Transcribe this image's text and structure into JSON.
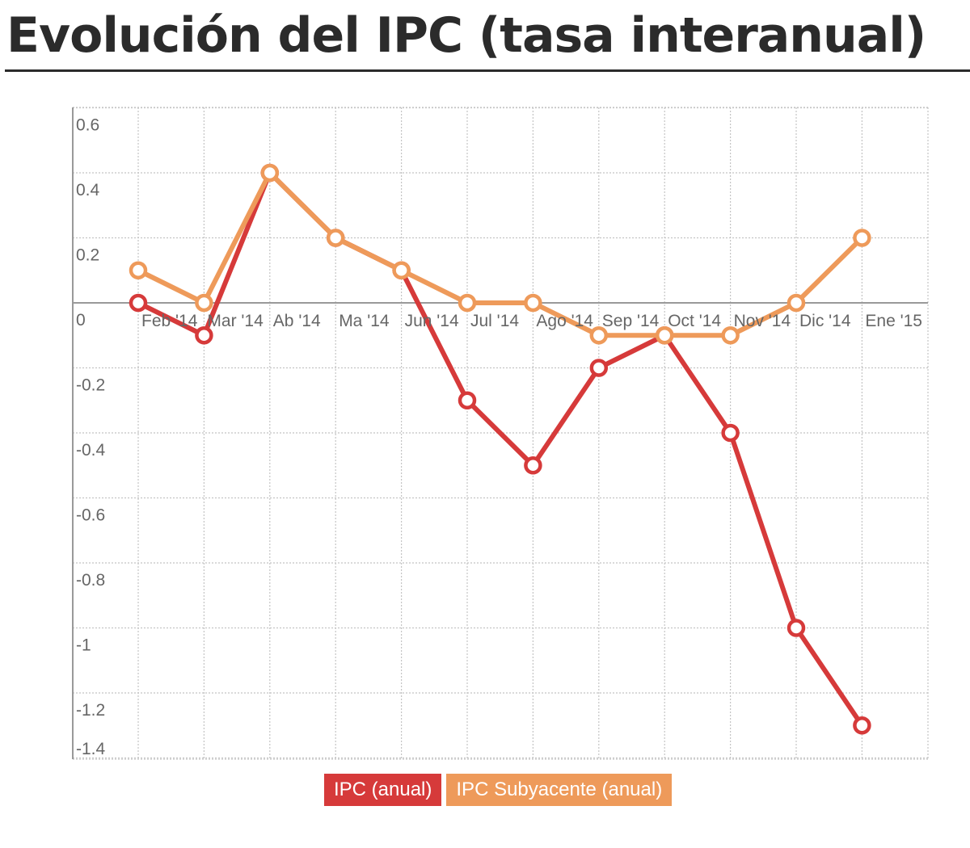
{
  "title": "Evolución del IPC (tasa interanual)",
  "colors": {
    "ipc": "#d63a3a",
    "subyacente": "#ee9a5a",
    "grid": "#c4c4c4",
    "axis": "#999999",
    "title": "#2b2b2b"
  },
  "legend": {
    "ipc_label": "IPC (anual)",
    "subyacente_label": "IPC Subyacente (anual)"
  },
  "chart_data": {
    "type": "line",
    "title": "Evolución del IPC (tasa interanual)",
    "xlabel": "",
    "ylabel": "",
    "ylim": [
      -1.4,
      0.6
    ],
    "yticks": [
      0.6,
      0.4,
      0.2,
      0,
      -0.2,
      -0.4,
      -0.6,
      -0.8,
      -1,
      -1.2,
      -1.4
    ],
    "categories": [
      "Feb '14",
      "Mar '14",
      "Ab '14",
      "Ma '14",
      "Jun '14",
      "Jul '14",
      "Ago '14",
      "Sep '14",
      "Oct '14",
      "Nov '14",
      "Dic '14",
      "Ene '15"
    ],
    "grid": true,
    "legend_position": "bottom-center",
    "series": [
      {
        "name": "IPC (anual)",
        "color": "#d63a3a",
        "values": [
          0,
          -0.1,
          0.4,
          0.2,
          0.1,
          -0.3,
          -0.5,
          -0.2,
          -0.1,
          -0.4,
          -1.0,
          -1.3
        ]
      },
      {
        "name": "IPC Subyacente (anual)",
        "color": "#ee9a5a",
        "values": [
          0.1,
          0,
          0.4,
          0.2,
          0.1,
          0,
          0,
          -0.1,
          -0.1,
          -0.1,
          0,
          0.2
        ]
      }
    ]
  }
}
